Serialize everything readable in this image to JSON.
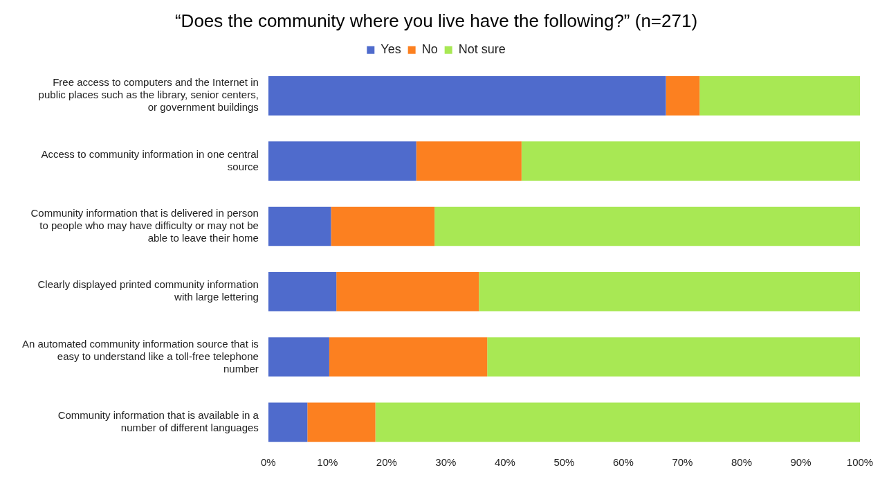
{
  "chart_data": {
    "type": "bar",
    "orientation": "horizontal",
    "stacked": true,
    "title": "“Does the community where you live have the following?” (n=271)",
    "legend": "top",
    "grid": false,
    "categories": [
      "Free access to computers and the Internet in public places such as the library, senior centers, or government buildings",
      "Access to community information in one central source",
      "Community information that is delivered in person to people who may have difficulty or may not be able to leave their home",
      "Clearly displayed printed community information with large lettering",
      "An automated community information source that is easy to understand like a toll-free telephone number",
      "Community information that is available in a number of different languages"
    ],
    "series": [
      {
        "name": "Yes",
        "color": "#4f6bcc",
        "values": [
          67.2,
          25.0,
          10.6,
          11.5,
          10.3,
          6.6
        ]
      },
      {
        "name": "No",
        "color": "#fc8020",
        "values": [
          5.7,
          17.8,
          17.5,
          24.1,
          26.7,
          11.5
        ]
      },
      {
        "name": "Not sure",
        "color": "#a8e854",
        "values": [
          27.1,
          57.2,
          71.9,
          64.4,
          63.0,
          81.9
        ]
      }
    ],
    "xlim": [
      0,
      100
    ],
    "xticks": [
      {
        "value": 0,
        "label": "0%"
      },
      {
        "value": 10,
        "label": "10%"
      },
      {
        "value": 20,
        "label": "20%"
      },
      {
        "value": 30,
        "label": "30%"
      },
      {
        "value": 40,
        "label": "40%"
      },
      {
        "value": 50,
        "label": "50%"
      },
      {
        "value": 60,
        "label": "60%"
      },
      {
        "value": 70,
        "label": "70%"
      },
      {
        "value": 80,
        "label": "80%"
      },
      {
        "value": 90,
        "label": "90%"
      },
      {
        "value": 100,
        "label": "100%"
      }
    ]
  }
}
